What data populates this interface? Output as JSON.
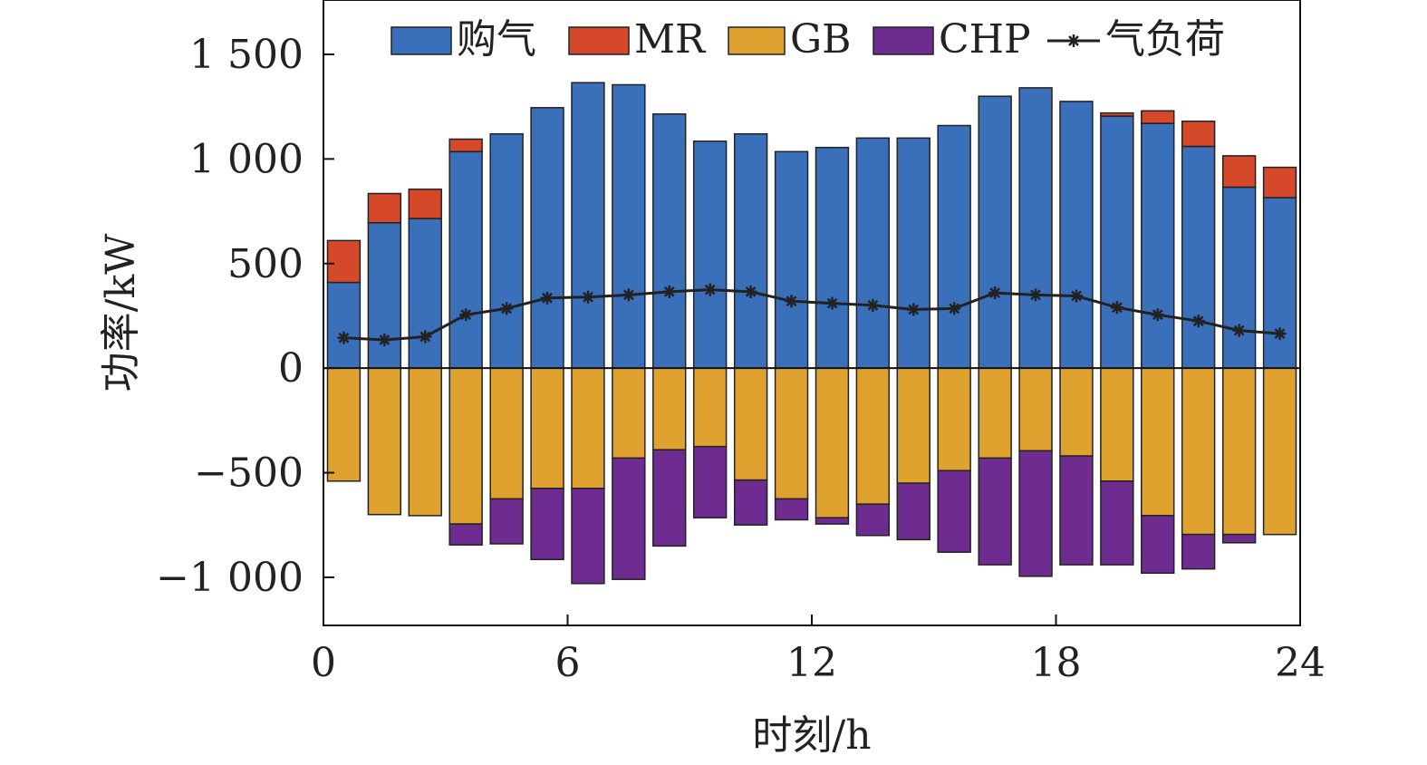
{
  "chart_data": {
    "type": "bar",
    "stacked": true,
    "title": "",
    "xlabel": "时刻/h",
    "ylabel": "功率/kW",
    "xlim": [
      0,
      24
    ],
    "ylim": [
      -1230,
      1760
    ],
    "xticks": [
      0,
      6,
      12,
      18,
      24
    ],
    "xtick_labels": [
      "0",
      "6",
      "12",
      "18",
      "24"
    ],
    "yticks": [
      -1000,
      -500,
      0,
      500,
      1000,
      1500
    ],
    "ytick_labels": [
      "−1 000",
      "−500",
      "0",
      "500",
      "1 000",
      "1 500"
    ],
    "legend_position": "top",
    "grid": false,
    "x": [
      0.5,
      1.5,
      2.5,
      3.5,
      4.5,
      5.5,
      6.5,
      7.5,
      8.5,
      9.5,
      10.5,
      11.5,
      12.5,
      13.5,
      14.5,
      15.5,
      16.5,
      17.5,
      18.5,
      19.5,
      20.5,
      21.5,
      22.5,
      23.5
    ],
    "series": [
      {
        "name": "购气",
        "kind": "bar",
        "color": "#3A6FBA",
        "values": [
          410,
          695,
          715,
          1035,
          1120,
          1245,
          1365,
          1355,
          1215,
          1085,
          1120,
          1035,
          1055,
          1100,
          1100,
          1160,
          1300,
          1340,
          1275,
          1205,
          1170,
          1060,
          865,
          815
        ]
      },
      {
        "name": "MR",
        "kind": "bar",
        "color": "#D5482A",
        "values": [
          200,
          140,
          140,
          60,
          0,
          0,
          0,
          0,
          0,
          0,
          0,
          0,
          0,
          0,
          0,
          0,
          0,
          0,
          0,
          15,
          60,
          120,
          150,
          145
        ]
      },
      {
        "name": "GB",
        "kind": "bar",
        "color": "#E0A22E",
        "values": [
          -540,
          -700,
          -705,
          -745,
          -625,
          -575,
          -575,
          -430,
          -390,
          -375,
          -535,
          -625,
          -715,
          -650,
          -550,
          -490,
          -430,
          -395,
          -420,
          -540,
          -705,
          -795,
          -795,
          -795
        ]
      },
      {
        "name": "CHP",
        "kind": "bar",
        "color": "#6E2C91",
        "values": [
          0,
          0,
          0,
          -100,
          -215,
          -340,
          -455,
          -580,
          -460,
          -340,
          -215,
          -100,
          -30,
          -150,
          -270,
          -390,
          -510,
          -600,
          -520,
          -400,
          -275,
          -165,
          -40,
          0
        ]
      },
      {
        "name": "气负荷",
        "kind": "line",
        "color": "#222222",
        "values": [
          145,
          135,
          150,
          255,
          285,
          335,
          340,
          350,
          365,
          375,
          365,
          320,
          310,
          300,
          280,
          285,
          360,
          350,
          345,
          290,
          255,
          225,
          180,
          165
        ]
      }
    ]
  }
}
